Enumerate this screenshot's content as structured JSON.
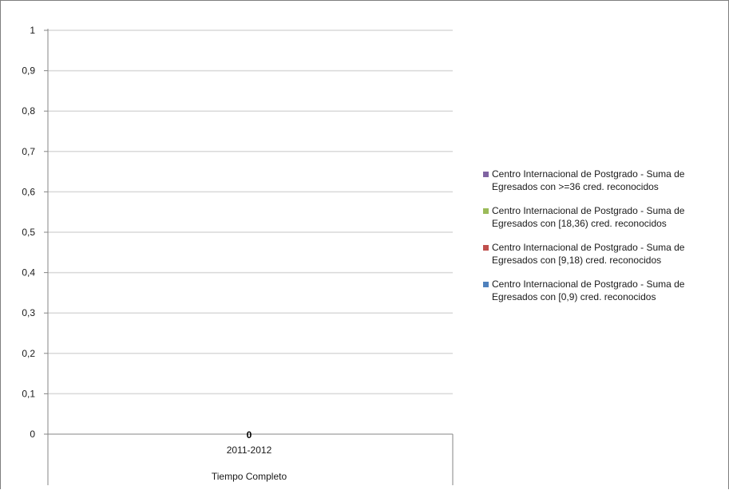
{
  "chart_data": {
    "type": "bar",
    "categories": [
      "2011-2012"
    ],
    "group_label": "Tiempo Completo",
    "yticks": [
      "0",
      "0,1",
      "0,2",
      "0,3",
      "0,4",
      "0,5",
      "0,6",
      "0,7",
      "0,8",
      "0,9",
      "1"
    ],
    "ylim": [
      0,
      1
    ],
    "grid": true,
    "legend_position": "right",
    "data_label": "0",
    "series": [
      {
        "name": "Centro Internacional de Postgrado - Suma de Egresados con >=36 cred. reconocidos",
        "values": [
          0
        ],
        "color": "#8064a2"
      },
      {
        "name": "Centro Internacional de Postgrado - Suma de Egresados con [18,36) cred. reconocidos",
        "values": [
          0
        ],
        "color": "#9bbb59"
      },
      {
        "name": "Centro Internacional de Postgrado - Suma de Egresados con [9,18) cred. reconocidos",
        "values": [
          0
        ],
        "color": "#c0504d"
      },
      {
        "name": "Centro Internacional de Postgrado - Suma de Egresados con [0,9) cred. reconocidos",
        "values": [
          0
        ],
        "color": "#4f81bd"
      }
    ]
  }
}
